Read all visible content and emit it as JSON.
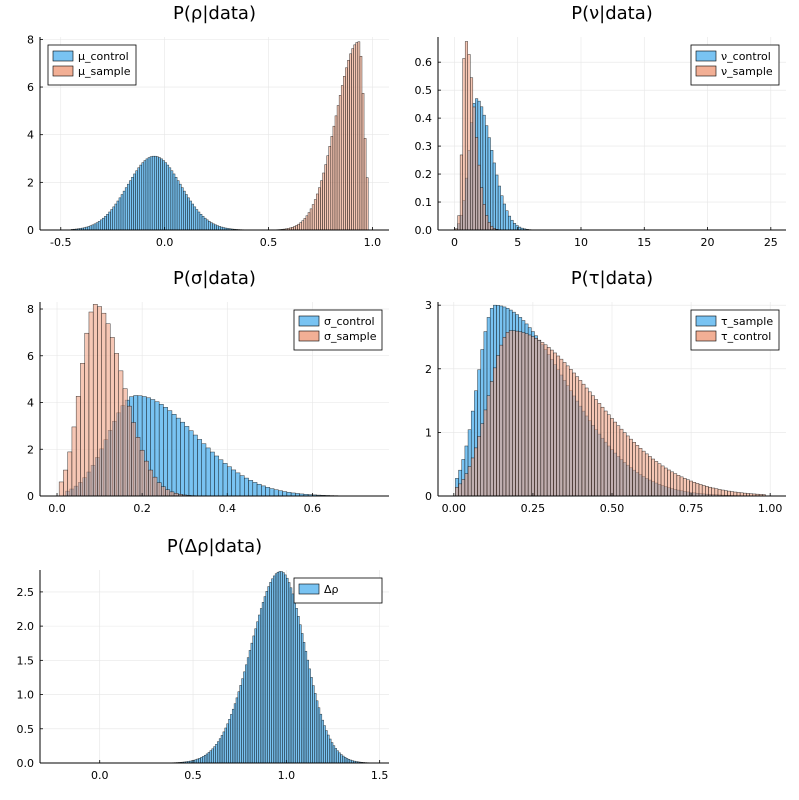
{
  "colors": {
    "blue": "#61b8f0",
    "orange": "#f0a183",
    "overlap": "#4f3a33",
    "overlap_blue": "#2e5d78",
    "grid": "#e6e6e6",
    "axis": "#000000"
  },
  "chart_data": [
    {
      "id": "rho",
      "type": "histogram",
      "title": "P(ρ|data)",
      "xlabel": "",
      "ylabel": "",
      "xlim": [
        -0.6,
        1.08
      ],
      "ylim": [
        0,
        8.1
      ],
      "xticks": [
        -0.5,
        0.0,
        0.5,
        1.0
      ],
      "xtick_labels": [
        "-0.5",
        "0.0",
        "0.5",
        "1.0"
      ],
      "yticks": [
        0,
        2,
        4,
        6,
        8
      ],
      "ytick_labels": [
        "0",
        "2",
        "4",
        "6",
        "8"
      ],
      "grid": true,
      "legend_position": "top-left",
      "series": [
        {
          "name": "μ_control",
          "color": "blue",
          "dist": {
            "kind": "normal",
            "mean": -0.05,
            "sd": 0.128
          },
          "range": [
            -0.45,
            0.45
          ],
          "bin": 0.01,
          "peak": 3.1
        },
        {
          "name": "μ_sample",
          "color": "orange",
          "dist": {
            "kind": "leftskew",
            "mode": 0.935,
            "left": 0.11,
            "right": 0.025
          },
          "range": [
            0.45,
            0.985
          ],
          "bin": 0.01,
          "peak": 7.9
        }
      ]
    },
    {
      "id": "nu",
      "type": "histogram",
      "title": "P(ν|data)",
      "xlabel": "",
      "ylabel": "",
      "xlim": [
        -1.3,
        26.2
      ],
      "ylim": [
        0,
        0.69
      ],
      "xticks": [
        0,
        5,
        10,
        15,
        20,
        25
      ],
      "xtick_labels": [
        "0",
        "5",
        "10",
        "15",
        "20",
        "25"
      ],
      "yticks": [
        0.0,
        0.1,
        0.2,
        0.3,
        0.4,
        0.5,
        0.6
      ],
      "ytick_labels": [
        "0.0",
        "0.1",
        "0.2",
        "0.3",
        "0.4",
        "0.5",
        "0.6"
      ],
      "grid": true,
      "legend_position": "top-right",
      "series": [
        {
          "name": "ν_control",
          "color": "blue",
          "dist": {
            "kind": "rightskew",
            "mode": 1.7,
            "left": 0.55,
            "right": 1.25
          },
          "range": [
            0.25,
            25.0
          ],
          "bin": 0.2,
          "peak": 0.47
        },
        {
          "name": "ν_sample",
          "color": "orange",
          "dist": {
            "kind": "rightskew",
            "mode": 0.85,
            "left": 0.22,
            "right": 0.75
          },
          "range": [
            0.05,
            25.0
          ],
          "bin": 0.2,
          "peak": 0.68
        }
      ]
    },
    {
      "id": "sigma",
      "type": "histogram",
      "title": "P(σ|data)",
      "xlabel": "",
      "ylabel": "",
      "xlim": [
        -0.04,
        0.78
      ],
      "ylim": [
        0,
        8.3
      ],
      "xticks": [
        0.0,
        0.2,
        0.4,
        0.6
      ],
      "xtick_labels": [
        "0.0",
        "0.2",
        "0.4",
        "0.6"
      ],
      "yticks": [
        0,
        2,
        4,
        6,
        8
      ],
      "ytick_labels": [
        "0",
        "2",
        "4",
        "6",
        "8"
      ],
      "grid": true,
      "legend_position": "top-right",
      "series": [
        {
          "name": "σ_control",
          "color": "blue",
          "dist": {
            "kind": "rightskew",
            "mode": 0.185,
            "left": 0.065,
            "right": 0.14
          },
          "range": [
            0.02,
            0.74
          ],
          "bin": 0.01,
          "peak": 4.3
        },
        {
          "name": "σ_sample",
          "color": "orange",
          "dist": {
            "kind": "rightskew",
            "mode": 0.09,
            "left": 0.035,
            "right": 0.065
          },
          "range": [
            0.005,
            0.5
          ],
          "bin": 0.01,
          "peak": 8.2
        }
      ]
    },
    {
      "id": "tau",
      "type": "histogram",
      "title": "P(τ|data)",
      "xlabel": "",
      "ylabel": "",
      "xlim": [
        -0.05,
        1.05
      ],
      "ylim": [
        0,
        3.05
      ],
      "xticks": [
        0.0,
        0.25,
        0.5,
        0.75,
        1.0
      ],
      "xtick_labels": [
        "0.00",
        "0.25",
        "0.50",
        "0.75",
        "1.00"
      ],
      "yticks": [
        0,
        1,
        2,
        3
      ],
      "ytick_labels": [
        "0",
        "1",
        "2",
        "3"
      ],
      "grid": true,
      "legend_position": "top-right",
      "series": [
        {
          "name": "τ_sample",
          "color": "blue",
          "dist": {
            "kind": "rightskew",
            "mode": 0.13,
            "left": 0.055,
            "right": 0.22
          },
          "range": [
            0.005,
            0.98
          ],
          "bin": 0.01,
          "peak": 3.0
        },
        {
          "name": "τ_control",
          "color": "orange",
          "dist": {
            "kind": "rightskew",
            "mode": 0.18,
            "left": 0.07,
            "right": 0.26
          },
          "range": [
            0.005,
            0.98
          ],
          "bin": 0.01,
          "peak": 2.6
        }
      ]
    },
    {
      "id": "delta",
      "type": "histogram",
      "title": "P(Δρ|data)",
      "xlabel": "",
      "ylabel": "",
      "xlim": [
        -0.32,
        1.55
      ],
      "ylim": [
        0,
        2.82
      ],
      "xticks": [
        0.0,
        0.5,
        1.0,
        1.5
      ],
      "xtick_labels": [
        "0.0",
        "0.5",
        "1.0",
        "1.5"
      ],
      "yticks": [
        0.0,
        0.5,
        1.0,
        1.5,
        2.0,
        2.5
      ],
      "ytick_labels": [
        "0.0",
        "0.5",
        "1.0",
        "1.5",
        "2.0",
        "2.5"
      ],
      "grid": true,
      "legend_position": "top-right",
      "series": [
        {
          "name": "Δρ",
          "color": "blue",
          "dist": {
            "kind": "leftskew",
            "mode": 0.97,
            "left": 0.16,
            "right": 0.13
          },
          "range": [
            -0.2,
            1.45
          ],
          "bin": 0.01,
          "peak": 2.8
        }
      ]
    }
  ]
}
